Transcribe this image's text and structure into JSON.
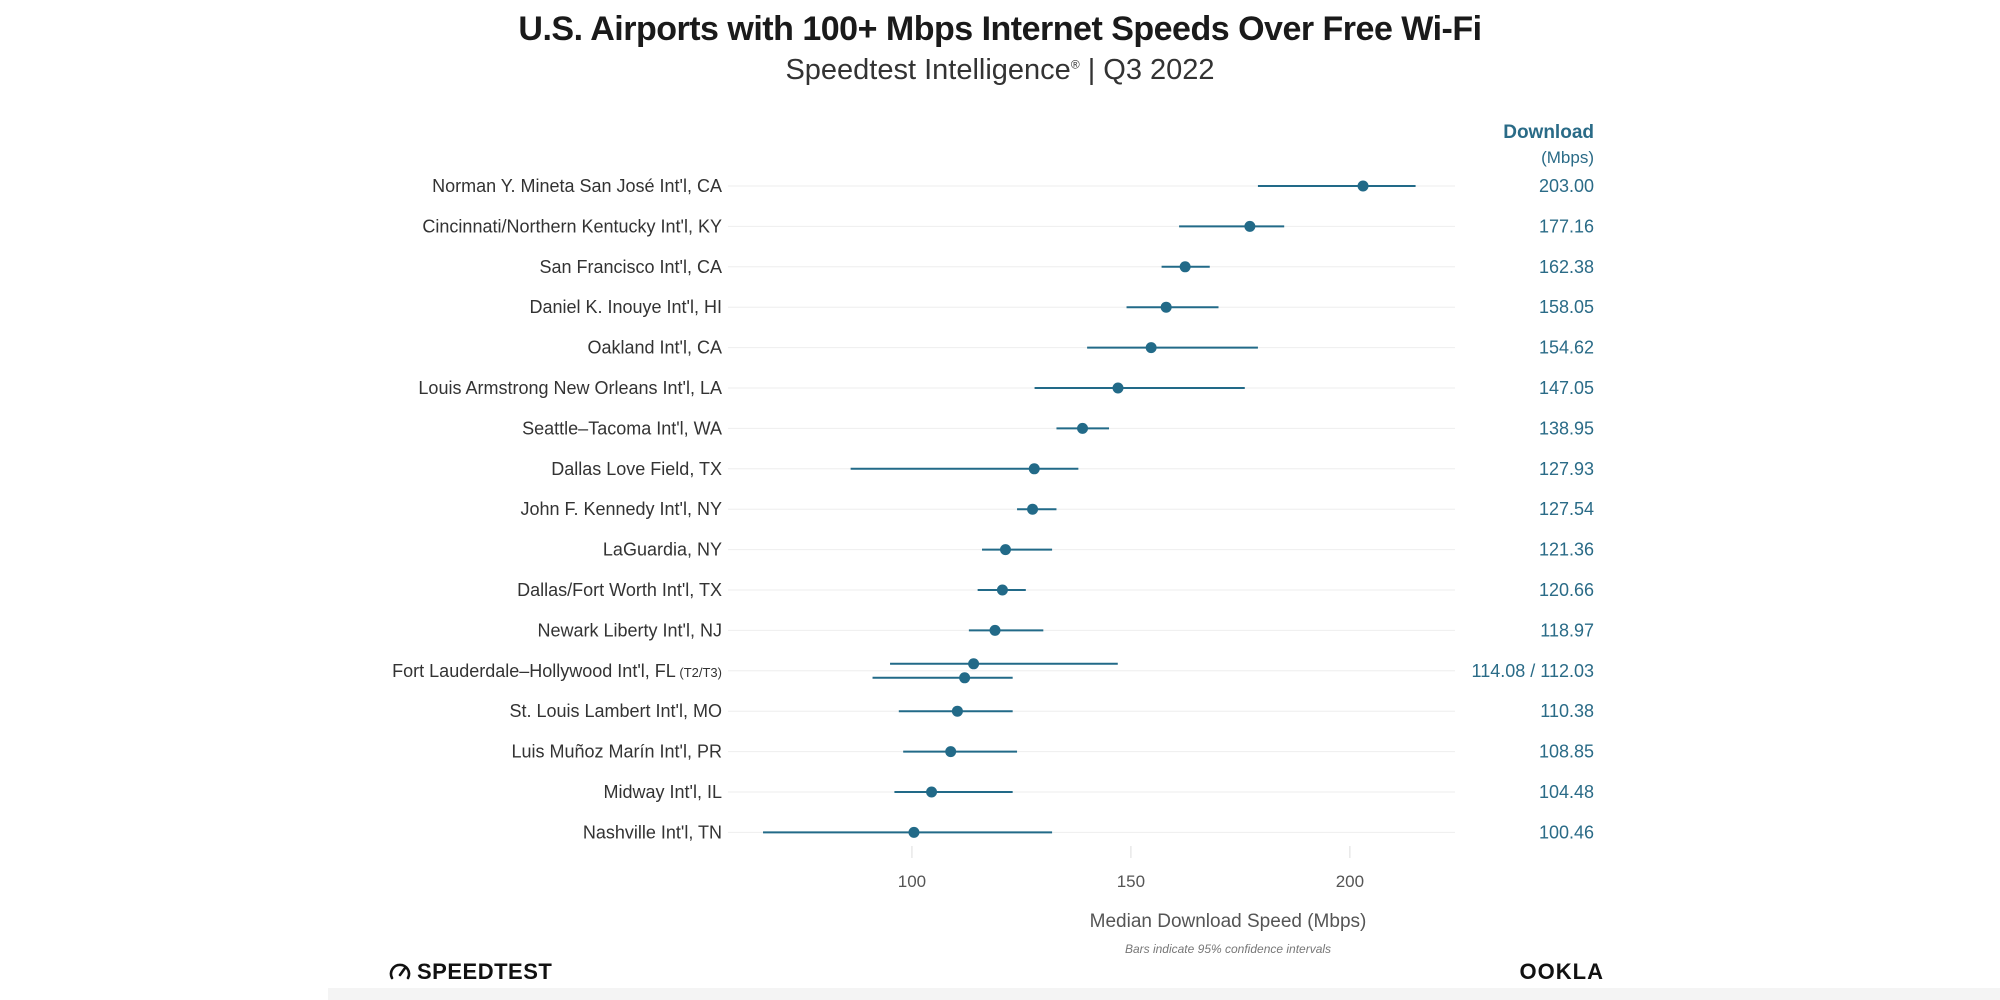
{
  "chart_data": {
    "type": "dot-errorbar",
    "title": "U.S. Airports with 100+ Mbps Internet Speeds Over Free Wi-Fi",
    "subtitle_main": "Speedtest Intelligence",
    "subtitle_mark": "®",
    "subtitle_period": " | Q3 2022",
    "xlabel": "Median Download Speed (Mbps)",
    "note": "Bars indicate 95% confidence intervals",
    "value_column": {
      "header": "Download",
      "unit": "(Mbps)"
    },
    "xlim": [
      58,
      224
    ],
    "xticks": [
      100,
      150,
      200
    ],
    "grid": true,
    "series_color": "#226a88",
    "value_color": "#2a6b87",
    "rows": [
      {
        "name": "Norman Y. Mineta San José Int'l, CA",
        "qualifier": "",
        "value_label": "203.00",
        "points": [
          {
            "value": 203.0,
            "low": 179,
            "high": 215
          }
        ]
      },
      {
        "name": "Cincinnati/Northern Kentucky Int'l, KY",
        "qualifier": "",
        "value_label": "177.16",
        "points": [
          {
            "value": 177.16,
            "low": 161,
            "high": 185
          }
        ]
      },
      {
        "name": "San Francisco Int'l, CA",
        "qualifier": "",
        "value_label": "162.38",
        "points": [
          {
            "value": 162.38,
            "low": 157,
            "high": 168
          }
        ]
      },
      {
        "name": "Daniel K. Inouye Int'l, HI",
        "qualifier": "",
        "value_label": "158.05",
        "points": [
          {
            "value": 158.05,
            "low": 149,
            "high": 170
          }
        ]
      },
      {
        "name": "Oakland Int'l, CA",
        "qualifier": "",
        "value_label": "154.62",
        "points": [
          {
            "value": 154.62,
            "low": 140,
            "high": 179
          }
        ]
      },
      {
        "name": "Louis Armstrong New Orleans Int'l, LA",
        "qualifier": "",
        "value_label": "147.05",
        "points": [
          {
            "value": 147.05,
            "low": 128,
            "high": 176
          }
        ]
      },
      {
        "name": "Seattle–Tacoma Int'l, WA",
        "qualifier": "",
        "value_label": "138.95",
        "points": [
          {
            "value": 138.95,
            "low": 133,
            "high": 145
          }
        ]
      },
      {
        "name": "Dallas Love Field, TX",
        "qualifier": "",
        "value_label": "127.93",
        "points": [
          {
            "value": 127.93,
            "low": 86,
            "high": 138
          }
        ]
      },
      {
        "name": "John F. Kennedy Int'l, NY",
        "qualifier": "",
        "value_label": "127.54",
        "points": [
          {
            "value": 127.54,
            "low": 124,
            "high": 133
          }
        ]
      },
      {
        "name": "LaGuardia, NY",
        "qualifier": "",
        "value_label": "121.36",
        "points": [
          {
            "value": 121.36,
            "low": 116,
            "high": 132
          }
        ]
      },
      {
        "name": "Dallas/Fort Worth Int'l, TX",
        "qualifier": "",
        "value_label": "120.66",
        "points": [
          {
            "value": 120.66,
            "low": 115,
            "high": 126
          }
        ]
      },
      {
        "name": "Newark Liberty Int'l, NJ",
        "qualifier": "",
        "value_label": "118.97",
        "points": [
          {
            "value": 118.97,
            "low": 113,
            "high": 130
          }
        ]
      },
      {
        "name": "Fort Lauderdale–Hollywood Int'l, FL",
        "qualifier": " (T2/T3)",
        "value_label": "114.08 / 112.03",
        "points": [
          {
            "value": 114.08,
            "low": 95,
            "high": 147
          },
          {
            "value": 112.03,
            "low": 91,
            "high": 123
          }
        ]
      },
      {
        "name": "St. Louis Lambert Int'l, MO",
        "qualifier": "",
        "value_label": "110.38",
        "points": [
          {
            "value": 110.38,
            "low": 97,
            "high": 123
          }
        ]
      },
      {
        "name": "Luis Muñoz Marín Int'l, PR",
        "qualifier": "",
        "value_label": "108.85",
        "points": [
          {
            "value": 108.85,
            "low": 98,
            "high": 124
          }
        ]
      },
      {
        "name": "Midway Int'l, IL",
        "qualifier": "",
        "value_label": "104.48",
        "points": [
          {
            "value": 104.48,
            "low": 96,
            "high": 123
          }
        ]
      },
      {
        "name": "Nashville Int'l, TN",
        "qualifier": "",
        "value_label": "100.46",
        "points": [
          {
            "value": 100.46,
            "low": 66,
            "high": 132
          }
        ]
      }
    ]
  },
  "branding": {
    "speedtest": "SPEEDTEST",
    "speedtest_icon": "speedometer-icon",
    "ookla": "OOKLA"
  }
}
